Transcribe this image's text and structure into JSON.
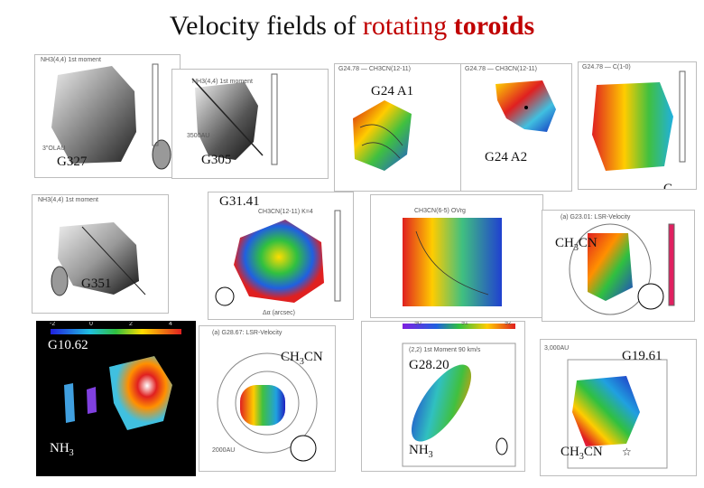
{
  "title": {
    "part1": "Velocity fields of ",
    "part2": "rotating ",
    "part3": "toroids"
  },
  "panels": {
    "g327": {
      "label": "G327",
      "header": "NH3(4,4)  1st moment",
      "scale": "3\"OLAU"
    },
    "g305": {
      "label": "G305",
      "header": "NH3(4,4) 1st moment",
      "scale": "3500AU"
    },
    "g24a1": {
      "label": "G24 A1",
      "header": "G24.78 — CH3CN(12-11)"
    },
    "g24a2": {
      "label": "G24 A2",
      "header": "G24.78 — CH3CN(12-11)"
    },
    "g24c": {
      "label": "C",
      "header": "G24.78 — C(1-0)"
    },
    "g31": {
      "label": "G31.41",
      "header": "CH3CN(12-11) K=4",
      "axis": "Δα (arcsec)"
    },
    "g29": {
      "header": "CH3CN(6-5) OVrg"
    },
    "g2301": {
      "label": "CH",
      "label_sub": "3",
      "label_end": "CN",
      "header": "(a) G23.01: LSR-Velocity"
    },
    "g351": {
      "label": "G351",
      "header": "NH3(4,4) 1st moment"
    },
    "g1062": {
      "label": "G10.62",
      "label2": "NH",
      "label2_sub": "3",
      "colorbar": [
        "-2",
        "0",
        "2",
        "4"
      ]
    },
    "g2867": {
      "header": "(a) G28.67: LSR-Velocity",
      "label": "CH",
      "label_sub": "3",
      "label_end": "CN",
      "scale": "2000AU"
    },
    "g2820": {
      "label": "G28.20",
      "label2": "NH",
      "label2_sub": "3",
      "header": "(2,2) 1st Moment 90 km/s",
      "colorbar": [
        "90",
        "91",
        "92"
      ]
    },
    "g1961": {
      "label": "G19.61",
      "label2": "CH",
      "label2_sub": "3",
      "label2_end": "CN",
      "scale": "3,000AU"
    }
  },
  "colors": {
    "title_red": "#c00000"
  }
}
